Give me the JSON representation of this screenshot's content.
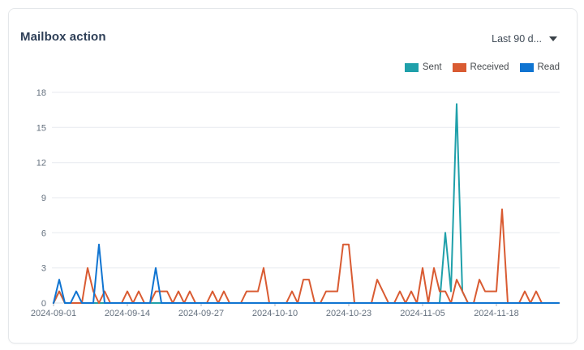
{
  "card": {
    "title": "Mailbox action",
    "time_range": {
      "label": "Last 90 d...",
      "collapsed": true
    }
  },
  "chart_data": {
    "type": "line",
    "title": "Mailbox action",
    "x_interval": "daily",
    "x_start": "2024-09-01",
    "x_end": "2024-11-29",
    "x_tick_labels": [
      "2024-09-01",
      "2024-09-14",
      "2024-09-27",
      "2024-10-10",
      "2024-10-23",
      "2024-11-05",
      "2024-11-18"
    ],
    "x_tick_indices": [
      0,
      13,
      26,
      39,
      52,
      65,
      78
    ],
    "y_ticks": [
      0,
      3,
      6,
      9,
      12,
      15,
      18
    ],
    "ylim": [
      0,
      18
    ],
    "grid": "horizontal-only",
    "legend_position": "top-right",
    "axis_colors": {
      "label": "#64707e",
      "gridline": "#e7eaef",
      "tick": "#aab2bc",
      "axis_line": "#dadfe4"
    },
    "series": [
      {
        "name": "Sent",
        "color": "#1fa0aa",
        "values": [
          0,
          1,
          0,
          0,
          0,
          0,
          0,
          0,
          0,
          0,
          0,
          0,
          0,
          0,
          0,
          0,
          0,
          0,
          0,
          0,
          0,
          0,
          0,
          0,
          0,
          0,
          0,
          0,
          0,
          0,
          0,
          0,
          0,
          0,
          0,
          0,
          0,
          0,
          0,
          0,
          0,
          0,
          0,
          0,
          0,
          0,
          0,
          0,
          0,
          0,
          0,
          0,
          0,
          0,
          0,
          0,
          0,
          0,
          0,
          0,
          0,
          0,
          0,
          0,
          0,
          0,
          0,
          0,
          0,
          6,
          1,
          17,
          1,
          0,
          0,
          0,
          0,
          0,
          0,
          0,
          0,
          0,
          0,
          0,
          0,
          0,
          0,
          0,
          0,
          0
        ]
      },
      {
        "name": "Received",
        "color": "#d95b32",
        "values": [
          0,
          1,
          0,
          0,
          0,
          0,
          3,
          1,
          0,
          1,
          0,
          0,
          0,
          1,
          0,
          1,
          0,
          0,
          1,
          1,
          1,
          0,
          1,
          0,
          1,
          0,
          0,
          0,
          1,
          0,
          1,
          0,
          0,
          0,
          1,
          1,
          1,
          3,
          0,
          0,
          0,
          0,
          1,
          0,
          2,
          2,
          0,
          0,
          1,
          1,
          1,
          5,
          5,
          0,
          0,
          0,
          0,
          2,
          1,
          0,
          0,
          1,
          0,
          1,
          0,
          3,
          0,
          3,
          1,
          1,
          0,
          2,
          1,
          0,
          0,
          2,
          1,
          1,
          1,
          8,
          0,
          0,
          0,
          1,
          0,
          1,
          0,
          0,
          0,
          0
        ]
      },
      {
        "name": "Read",
        "color": "#0f74d1",
        "values": [
          0,
          2,
          0,
          0,
          1,
          0,
          0,
          0,
          5,
          0,
          0,
          0,
          0,
          0,
          0,
          0,
          0,
          0,
          3,
          0,
          0,
          0,
          0,
          0,
          0,
          0,
          0,
          0,
          0,
          0,
          0,
          0,
          0,
          0,
          0,
          0,
          0,
          0,
          0,
          0,
          0,
          0,
          0,
          0,
          0,
          0,
          0,
          0,
          0,
          0,
          0,
          0,
          0,
          0,
          0,
          0,
          0,
          0,
          0,
          0,
          0,
          0,
          0,
          0,
          0,
          0,
          0,
          0,
          0,
          0,
          0,
          0,
          0,
          0,
          0,
          0,
          0,
          0,
          0,
          0,
          0,
          0,
          0,
          0,
          0,
          0,
          0,
          0,
          0,
          0
        ]
      }
    ]
  }
}
